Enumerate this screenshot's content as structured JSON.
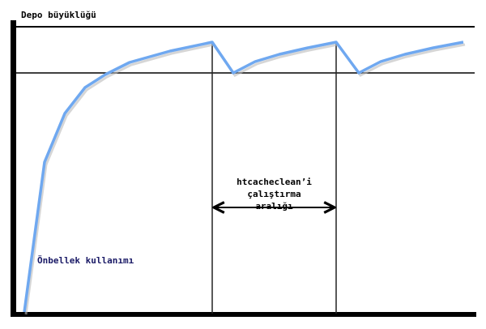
{
  "diagram": {
    "y_axis_label": "Depo büyüklüğü",
    "curve_label": "Önbellek kullanımı",
    "interval_label": [
      "htcacheclean’i",
      "çalıştırma",
      "aralığı"
    ],
    "colors": {
      "curve": "#6fa8f0",
      "axis": "#000000",
      "curve_label": "#1a1a66"
    }
  }
}
